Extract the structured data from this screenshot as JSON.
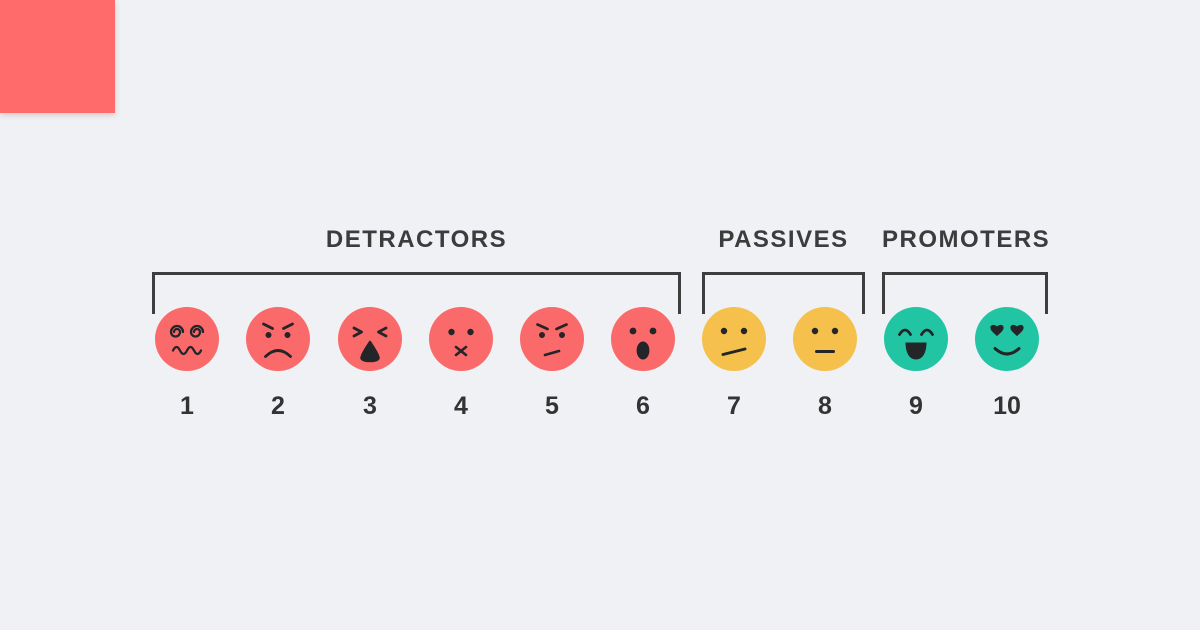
{
  "page": {
    "background": "#EFF1F4"
  },
  "accent": {
    "corner_square_color": "#FF6B6B"
  },
  "nps": {
    "line_color": "#3E3E3E",
    "label_color": "#3C3C3C",
    "score_color": "#333333",
    "feature_color": "#242528",
    "groups": [
      {
        "id": "detractors",
        "label": "DETRACTORS"
      },
      {
        "id": "passives",
        "label": "PASSIVES"
      },
      {
        "id": "promoters",
        "label": "PROMOTERS"
      }
    ],
    "faces": [
      {
        "score": "1",
        "group": "detractors",
        "expression": "dizzy",
        "color": "#FA6A6A"
      },
      {
        "score": "2",
        "group": "detractors",
        "expression": "angry",
        "color": "#FA6A6A"
      },
      {
        "score": "3",
        "group": "detractors",
        "expression": "yelling",
        "color": "#FA6A6A"
      },
      {
        "score": "4",
        "group": "detractors",
        "expression": "sealed-lips",
        "color": "#FA6A6A"
      },
      {
        "score": "5",
        "group": "detractors",
        "expression": "annoyed",
        "color": "#FA6A6A"
      },
      {
        "score": "6",
        "group": "detractors",
        "expression": "shocked",
        "color": "#FA6A6A"
      },
      {
        "score": "7",
        "group": "passives",
        "expression": "skeptical",
        "color": "#F5C04C"
      },
      {
        "score": "8",
        "group": "passives",
        "expression": "neutral",
        "color": "#F5C04C"
      },
      {
        "score": "9",
        "group": "promoters",
        "expression": "laughing",
        "color": "#22C5A3"
      },
      {
        "score": "10",
        "group": "promoters",
        "expression": "heart-eyes",
        "color": "#22C5A3"
      }
    ]
  }
}
